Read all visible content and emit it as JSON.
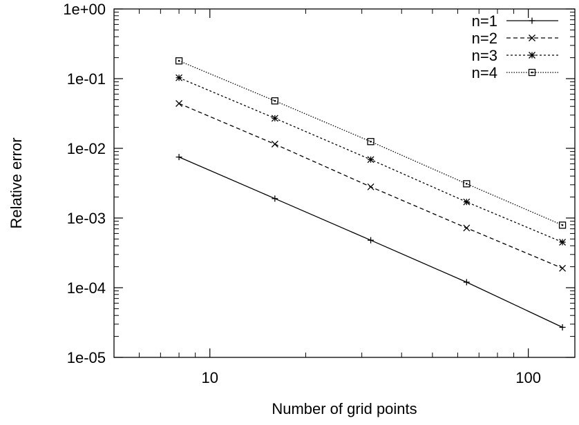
{
  "chart_data": {
    "type": "line",
    "title": "",
    "xlabel": "Number of grid points",
    "ylabel": "Relative error",
    "x_scale": "log",
    "y_scale": "log",
    "xlim": [
      5,
      140
    ],
    "ylim": [
      1e-05,
      1
    ],
    "x_ticks": [
      {
        "value": 10,
        "label": "10"
      },
      {
        "value": 100,
        "label": "100"
      }
    ],
    "y_ticks": [
      {
        "value": 1,
        "label": "1e+00"
      },
      {
        "value": 0.1,
        "label": "1e-01"
      },
      {
        "value": 0.01,
        "label": "1e-02"
      },
      {
        "value": 0.001,
        "label": "1e-03"
      },
      {
        "value": 0.0001,
        "label": "1e-04"
      },
      {
        "value": 1e-05,
        "label": "1e-05"
      }
    ],
    "grid": false,
    "legend_position": "top-right",
    "x": [
      8,
      16,
      32,
      64,
      128
    ],
    "series": [
      {
        "name": "n=1",
        "line_style": "solid",
        "marker": "plus",
        "values": [
          0.0075,
          0.0019,
          0.00048,
          0.00012,
          2.7e-05
        ]
      },
      {
        "name": "n=2",
        "line_style": "dashed",
        "marker": "cross",
        "values": [
          0.044,
          0.0115,
          0.0028,
          0.00072,
          0.00019
        ]
      },
      {
        "name": "n=3",
        "line_style": "dotted",
        "marker": "star",
        "values": [
          0.103,
          0.027,
          0.0069,
          0.0017,
          0.00045
        ]
      },
      {
        "name": "n=4",
        "line_style": "fine-dotted",
        "marker": "box",
        "values": [
          0.18,
          0.048,
          0.0125,
          0.0031,
          0.00079
        ]
      }
    ]
  }
}
